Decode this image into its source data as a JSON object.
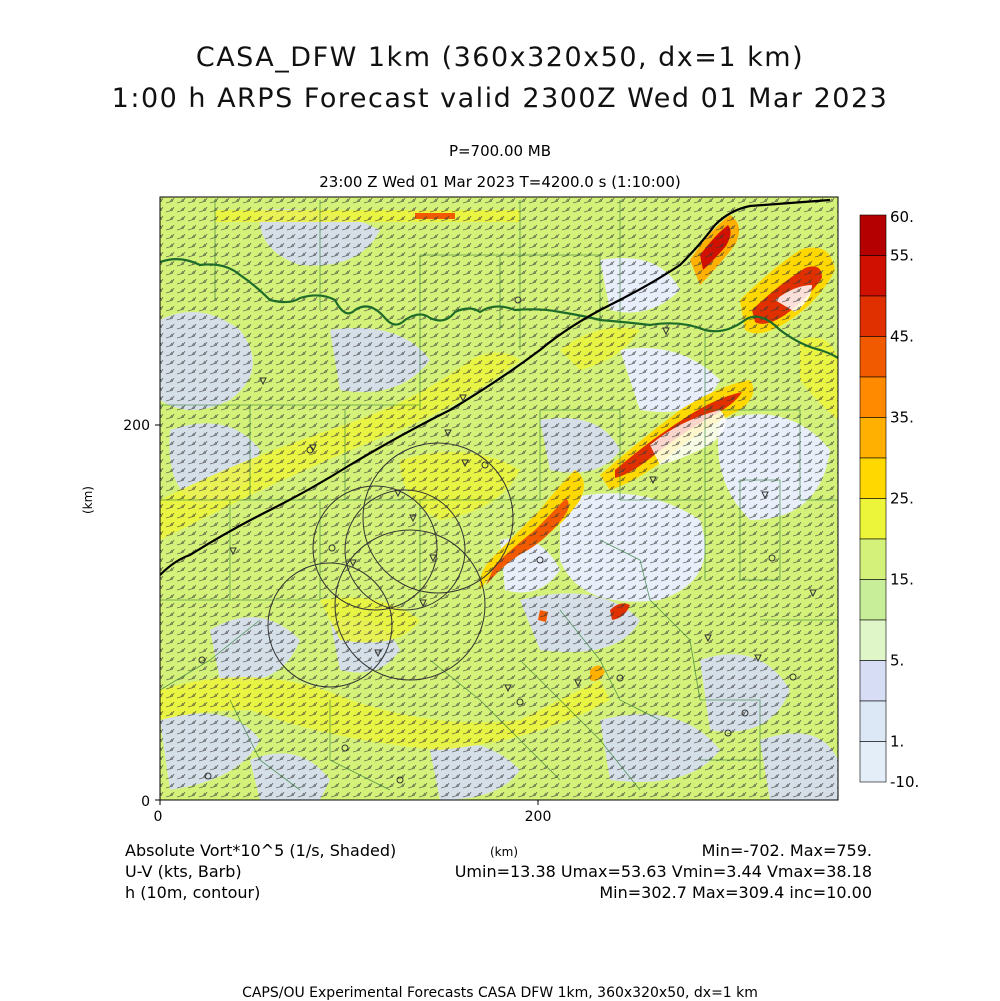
{
  "header": {
    "title_line1": "CASA_DFW 1km (360x320x50, dx=1 km)",
    "title_line2": "1:00 h ARPS Forecast valid 2300Z Wed 01 Mar 2023",
    "pressure_level": "P=700.00 MB",
    "time_line": "23:00 Z Wed 01 Mar 2023   T=4200.0 s (1:10:00)"
  },
  "axes": {
    "x_ticks": [
      "0",
      "200"
    ],
    "y_ticks": [
      "0",
      "200"
    ],
    "x_unit": "(km)",
    "y_unit": "(km)"
  },
  "colorbar": {
    "labels": [
      "60.",
      "55.",
      "45.",
      "35.",
      "25.",
      "15.",
      "5.",
      "1.",
      "-10."
    ],
    "colors": [
      "#b40000",
      "#d01000",
      "#e03000",
      "#f25a00",
      "#ff8a00",
      "#ffb000",
      "#ffd800",
      "#ecf53a",
      "#d4f27a",
      "#c8ee9a",
      "#dff7c8",
      "#d6ddf4",
      "#dde8f6",
      "#e4eef8"
    ]
  },
  "legend": {
    "field1": "Absolute Vort*10^5 (1/s, Shaded)",
    "field1_stats": "Min=-702. Max=759.",
    "field2": "U-V (kts, Barb)",
    "field2_stats": "Umin=13.38 Umax=53.63 Vmin=3.44 Vmax=38.18",
    "field3": "h (10m, contour)",
    "field3_stats": "Min=302.7 Max=309.4 inc=10.00",
    "km_label": "(km)"
  },
  "footer": "CAPS/OU Experimental Forecasts  CASA DFW 1km, 360x320x50, dx=1 km",
  "map_colors": {
    "background_green": "#d4f27a",
    "light_blue": "#d6ddf4",
    "yellow": "#ecf53a",
    "boundary_green": "#1f6b2a",
    "state_line": "#000000",
    "barb_color": "#333333"
  }
}
